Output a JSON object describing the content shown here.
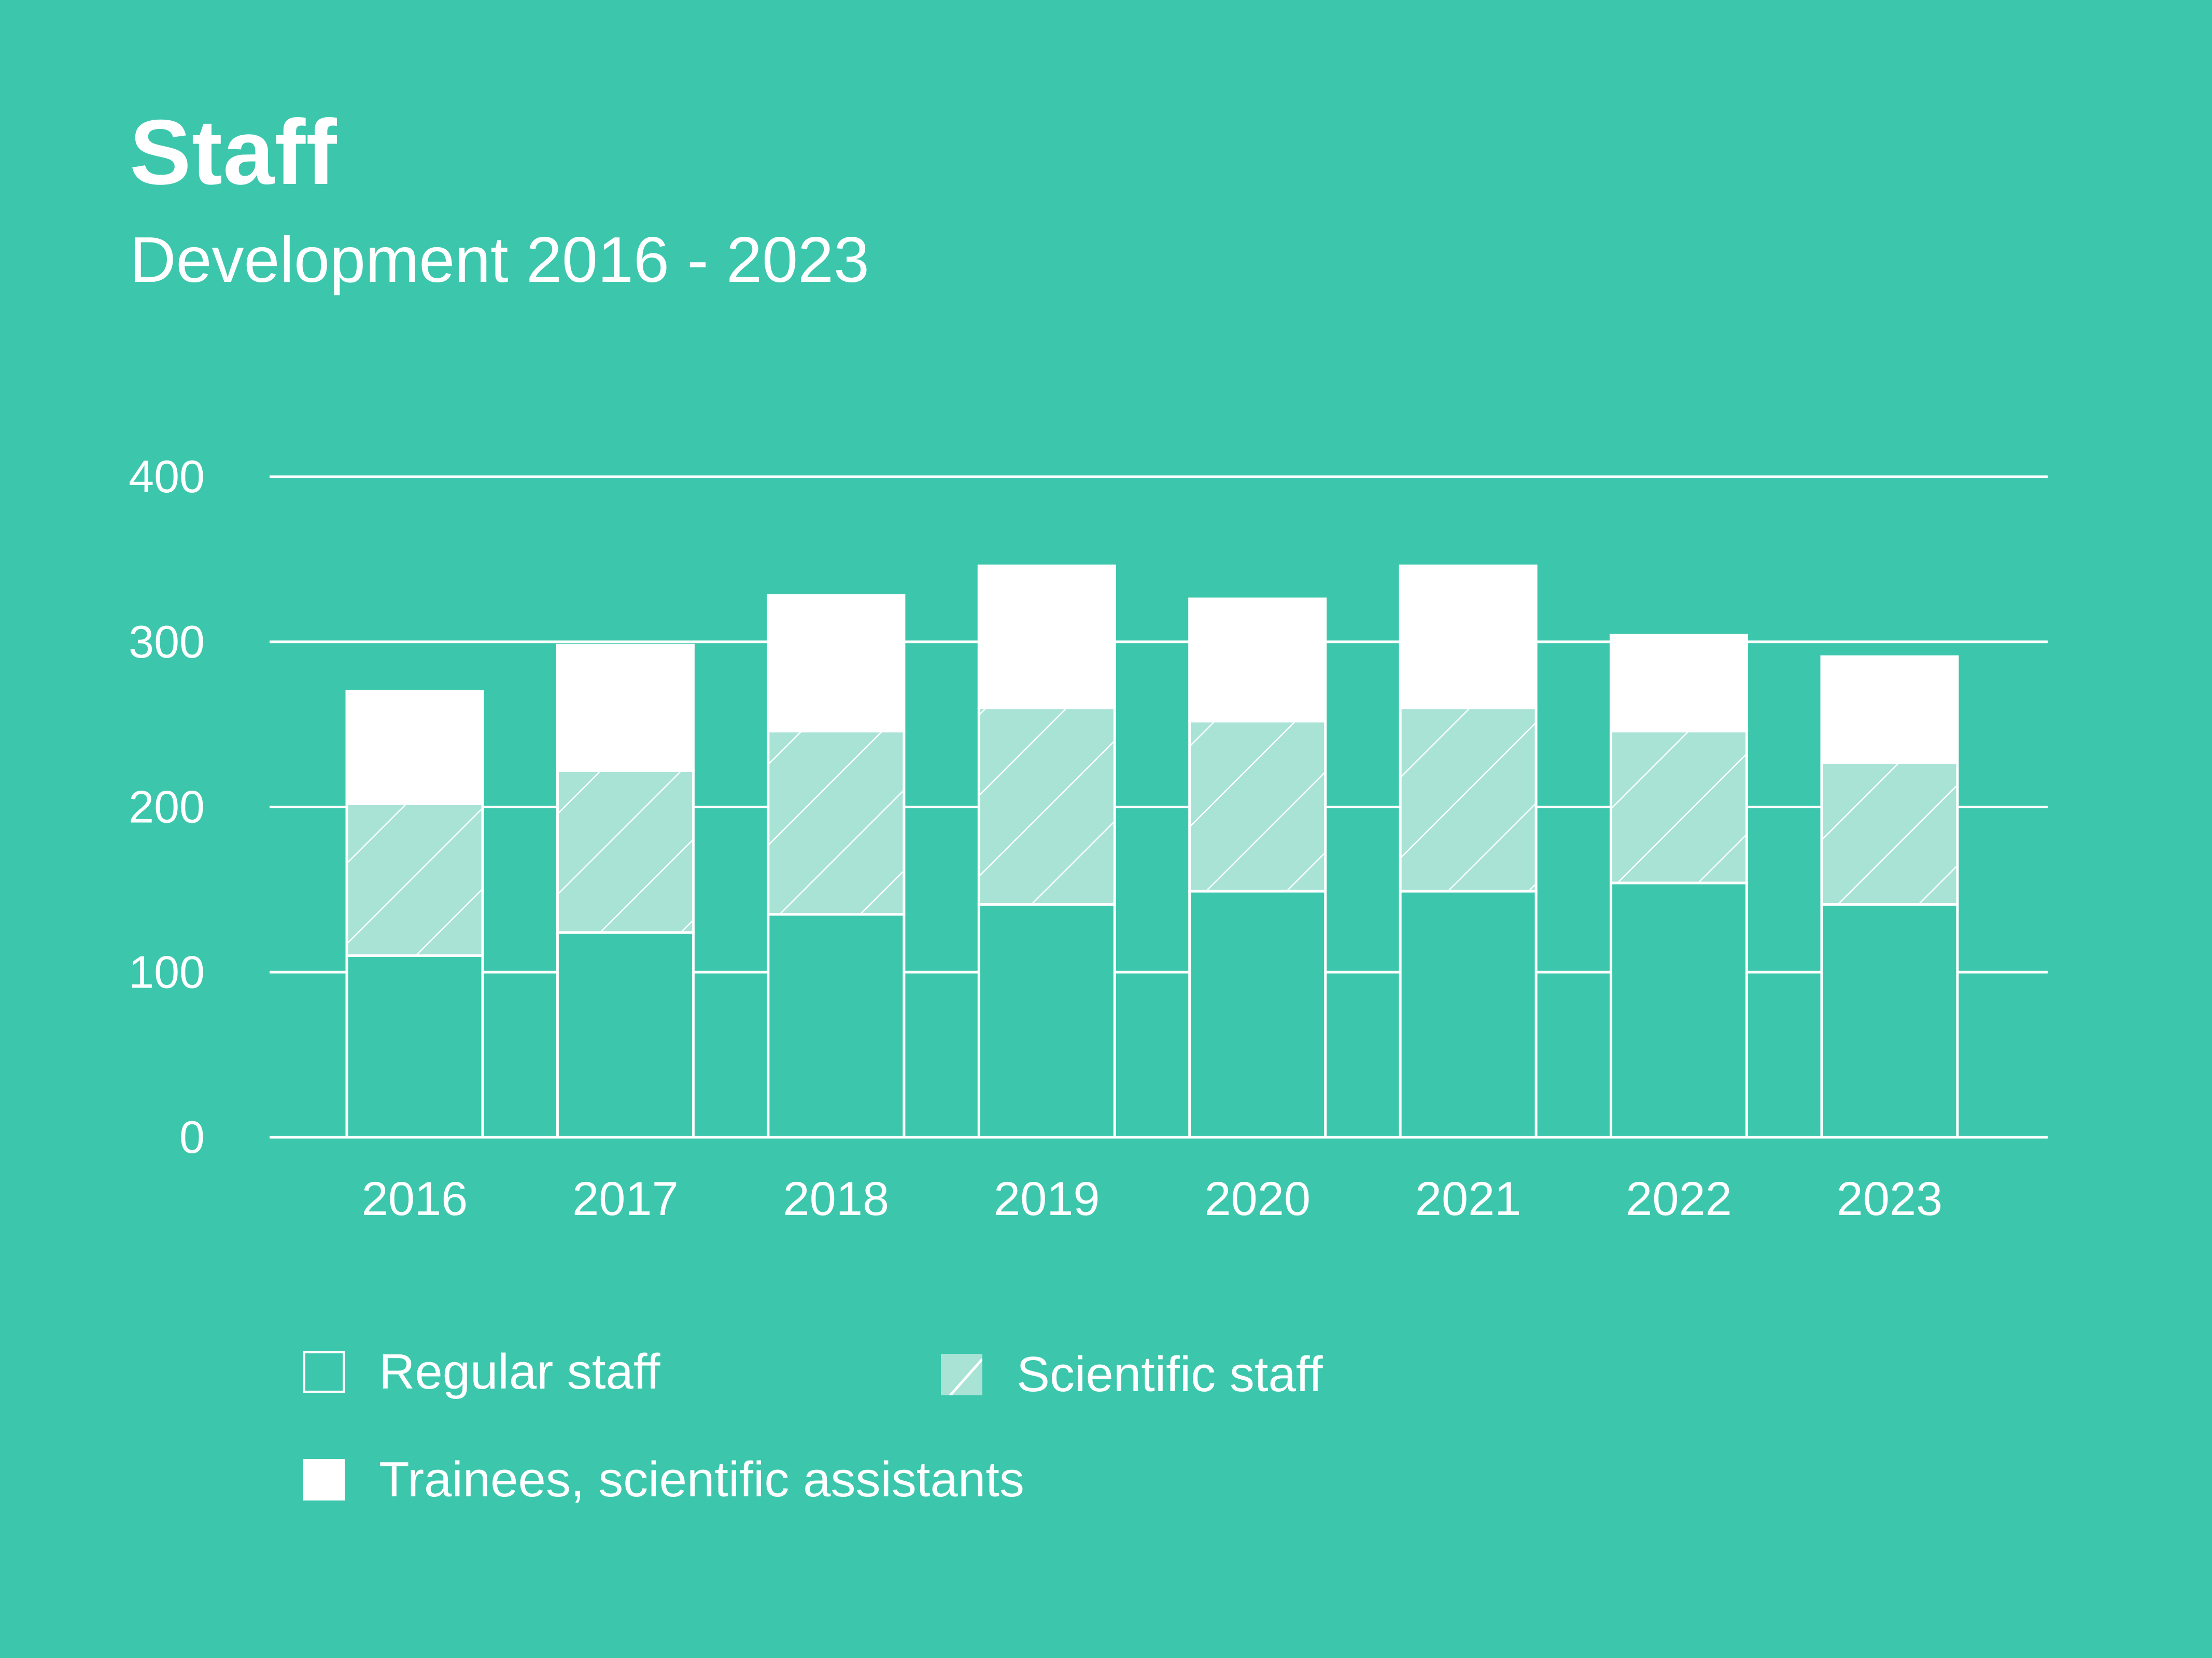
{
  "header": {
    "title": "Staff",
    "subtitle": "Development 2016 - 2023"
  },
  "colors": {
    "background": "#3cc7ad",
    "regular": "#3cc7ad",
    "scientific": "#a8e3d6",
    "trainees": "#ffffff",
    "lines": "#ffffff"
  },
  "legend": {
    "regular": "Regular staff",
    "scientific": "Scientific staff",
    "trainees": "Trainees, scientific assistants"
  },
  "chart_data": {
    "type": "bar",
    "stacked": true,
    "title": "Staff",
    "subtitle": "Development 2016 - 2023",
    "xlabel": "",
    "ylabel": "",
    "ylim": [
      0,
      400
    ],
    "yticks": [
      0,
      100,
      200,
      300,
      400
    ],
    "grid": true,
    "legend_position": "bottom",
    "categories": [
      "2016",
      "2017",
      "2018",
      "2019",
      "2020",
      "2021",
      "2022",
      "2023"
    ],
    "series": [
      {
        "name": "Regular staff",
        "values": [
          110,
          124,
          135,
          141,
          149,
          149,
          154,
          141
        ]
      },
      {
        "name": "Scientific staff",
        "values": [
          92,
          98,
          111,
          119,
          103,
          111,
          92,
          86
        ]
      },
      {
        "name": "Trainees, scientific assistants",
        "values": [
          68,
          76,
          82,
          86,
          74,
          86,
          58,
          64
        ]
      }
    ]
  }
}
